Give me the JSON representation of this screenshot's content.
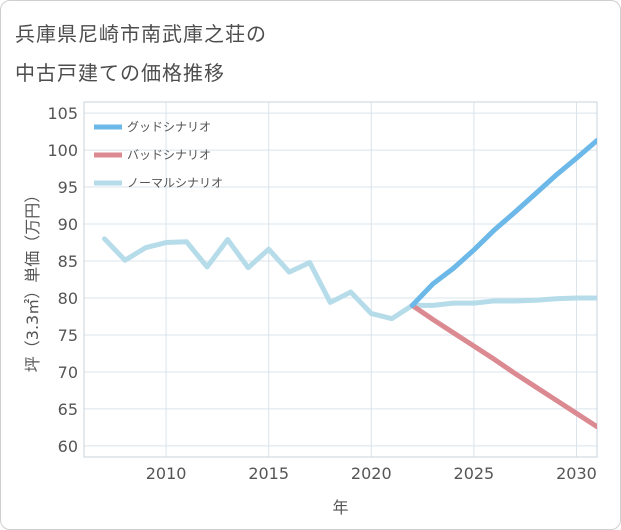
{
  "header": {
    "title_line1": "兵庫県尼崎市南武庫之荘の",
    "title_line2": "中古戸建ての価格推移"
  },
  "chart_data": {
    "type": "line",
    "title": "兵庫県尼崎市南武庫之荘の中古戸建ての価格推移",
    "xlabel": "年",
    "ylabel": "坪（3.3㎡）単価（万円）",
    "xlim": [
      2006,
      2031
    ],
    "ylim": [
      58.5,
      106.5
    ],
    "xticks": [
      2010,
      2015,
      2020,
      2025,
      2030
    ],
    "yticks": [
      60,
      65,
      70,
      75,
      80,
      85,
      90,
      95,
      100,
      105
    ],
    "grid": true,
    "legend_position": "top-left",
    "series": [
      {
        "name": "グッドシナリオ",
        "color": "#6cb8e8",
        "x": [
          2022,
          2023,
          2024,
          2025,
          2026,
          2027,
          2028,
          2029,
          2030,
          2031
        ],
        "y": [
          79.0,
          81.9,
          84.0,
          86.5,
          89.2,
          91.6,
          94.1,
          96.6,
          98.9,
          101.3
        ]
      },
      {
        "name": "バッドシナリオ",
        "color": "#dc8a92",
        "x": [
          2022,
          2023,
          2024,
          2025,
          2026,
          2027,
          2028,
          2029,
          2030,
          2031
        ],
        "y": [
          79.0,
          77.1,
          75.3,
          73.5,
          71.7,
          69.8,
          68.0,
          66.2,
          64.4,
          62.6
        ]
      },
      {
        "name": "ノーマルシナリオ",
        "color": "#b6dcea",
        "x": [
          2007,
          2008,
          2009,
          2010,
          2011,
          2012,
          2013,
          2014,
          2015,
          2016,
          2017,
          2018,
          2019,
          2020,
          2021,
          2022,
          2023,
          2024,
          2025,
          2026,
          2027,
          2028,
          2029,
          2030,
          2031
        ],
        "y": [
          88.0,
          85.1,
          86.8,
          87.5,
          87.6,
          84.2,
          87.9,
          84.1,
          86.6,
          83.5,
          84.8,
          79.4,
          80.8,
          77.9,
          77.2,
          79.0,
          79.0,
          79.3,
          79.3,
          79.6,
          79.6,
          79.7,
          79.9,
          80.0,
          80.0
        ]
      }
    ]
  }
}
